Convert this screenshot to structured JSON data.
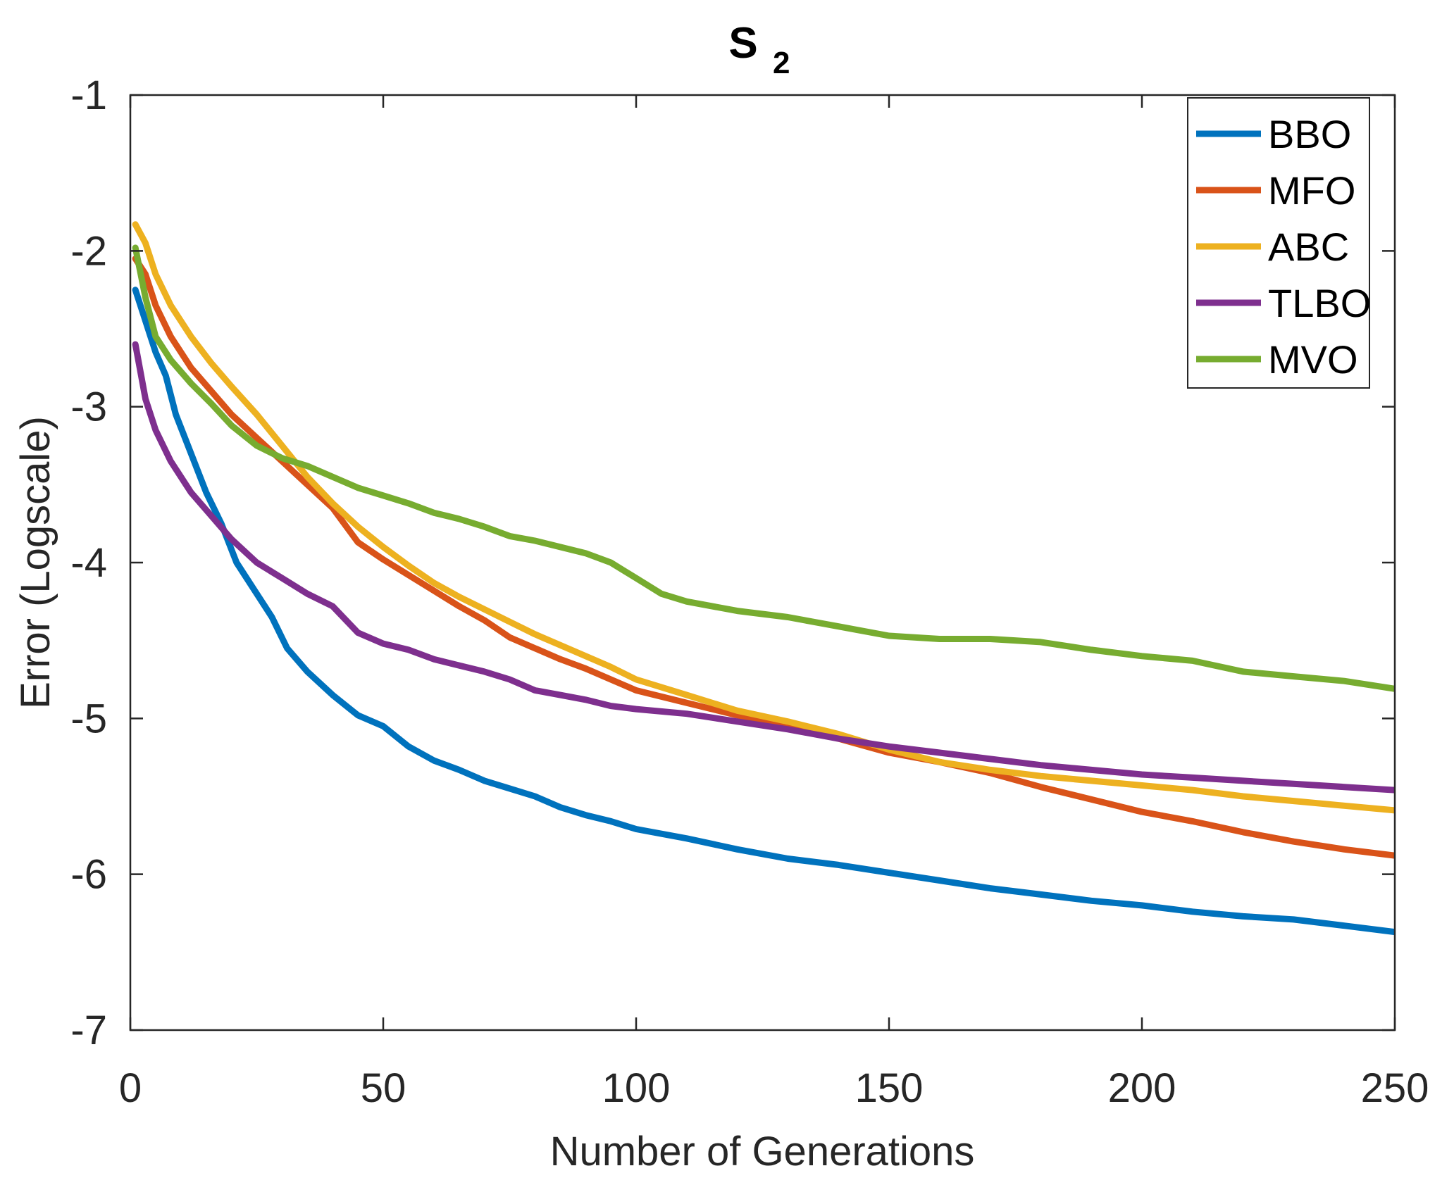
{
  "chart_data": {
    "type": "line",
    "title": "S",
    "title_subscript": "2",
    "xlabel": "Number of Generations",
    "ylabel": "Error (Logscale)",
    "xlim": [
      0,
      250
    ],
    "ylim": [
      -7,
      -1
    ],
    "xticks": [
      0,
      50,
      100,
      150,
      200,
      250
    ],
    "yticks": [
      -1,
      -2,
      -3,
      -4,
      -5,
      -6,
      -7
    ],
    "grid": false,
    "legend_position": "top-right",
    "series": [
      {
        "name": "BBO",
        "color": "#0072BD",
        "points": [
          [
            1,
            -2.25
          ],
          [
            3,
            -2.45
          ],
          [
            5,
            -2.65
          ],
          [
            7,
            -2.8
          ],
          [
            9,
            -3.05
          ],
          [
            12,
            -3.3
          ],
          [
            15,
            -3.55
          ],
          [
            18,
            -3.75
          ],
          [
            21,
            -4.0
          ],
          [
            25,
            -4.2
          ],
          [
            28,
            -4.35
          ],
          [
            31,
            -4.55
          ],
          [
            35,
            -4.7
          ],
          [
            40,
            -4.85
          ],
          [
            45,
            -4.98
          ],
          [
            50,
            -5.05
          ],
          [
            55,
            -5.18
          ],
          [
            60,
            -5.27
          ],
          [
            65,
            -5.33
          ],
          [
            70,
            -5.4
          ],
          [
            75,
            -5.45
          ],
          [
            80,
            -5.5
          ],
          [
            85,
            -5.57
          ],
          [
            90,
            -5.62
          ],
          [
            95,
            -5.66
          ],
          [
            100,
            -5.71
          ],
          [
            110,
            -5.77
          ],
          [
            120,
            -5.84
          ],
          [
            130,
            -5.9
          ],
          [
            140,
            -5.94
          ],
          [
            150,
            -5.99
          ],
          [
            160,
            -6.04
          ],
          [
            170,
            -6.09
          ],
          [
            180,
            -6.13
          ],
          [
            190,
            -6.17
          ],
          [
            200,
            -6.2
          ],
          [
            210,
            -6.24
          ],
          [
            220,
            -6.27
          ],
          [
            230,
            -6.29
          ],
          [
            240,
            -6.33
          ],
          [
            250,
            -6.37
          ]
        ]
      },
      {
        "name": "MFO",
        "color": "#D95319",
        "points": [
          [
            1,
            -2.05
          ],
          [
            3,
            -2.15
          ],
          [
            5,
            -2.35
          ],
          [
            8,
            -2.55
          ],
          [
            12,
            -2.75
          ],
          [
            16,
            -2.9
          ],
          [
            20,
            -3.05
          ],
          [
            25,
            -3.2
          ],
          [
            30,
            -3.35
          ],
          [
            35,
            -3.5
          ],
          [
            40,
            -3.65
          ],
          [
            45,
            -3.87
          ],
          [
            50,
            -3.98
          ],
          [
            55,
            -4.08
          ],
          [
            60,
            -4.18
          ],
          [
            65,
            -4.28
          ],
          [
            70,
            -4.37
          ],
          [
            75,
            -4.48
          ],
          [
            80,
            -4.55
          ],
          [
            85,
            -4.62
          ],
          [
            90,
            -4.68
          ],
          [
            95,
            -4.75
          ],
          [
            100,
            -4.82
          ],
          [
            110,
            -4.9
          ],
          [
            120,
            -4.98
          ],
          [
            130,
            -5.05
          ],
          [
            140,
            -5.13
          ],
          [
            150,
            -5.22
          ],
          [
            160,
            -5.28
          ],
          [
            170,
            -5.35
          ],
          [
            180,
            -5.44
          ],
          [
            190,
            -5.52
          ],
          [
            200,
            -5.6
          ],
          [
            210,
            -5.66
          ],
          [
            220,
            -5.73
          ],
          [
            230,
            -5.79
          ],
          [
            240,
            -5.84
          ],
          [
            250,
            -5.88
          ]
        ]
      },
      {
        "name": "ABC",
        "color": "#EDB120",
        "points": [
          [
            1,
            -1.83
          ],
          [
            3,
            -1.95
          ],
          [
            5,
            -2.15
          ],
          [
            8,
            -2.35
          ],
          [
            12,
            -2.55
          ],
          [
            16,
            -2.72
          ],
          [
            20,
            -2.87
          ],
          [
            25,
            -3.05
          ],
          [
            30,
            -3.25
          ],
          [
            35,
            -3.45
          ],
          [
            40,
            -3.62
          ],
          [
            45,
            -3.77
          ],
          [
            50,
            -3.9
          ],
          [
            55,
            -4.02
          ],
          [
            60,
            -4.13
          ],
          [
            65,
            -4.22
          ],
          [
            70,
            -4.3
          ],
          [
            75,
            -4.38
          ],
          [
            80,
            -4.46
          ],
          [
            85,
            -4.53
          ],
          [
            90,
            -4.6
          ],
          [
            95,
            -4.67
          ],
          [
            100,
            -4.75
          ],
          [
            110,
            -4.85
          ],
          [
            120,
            -4.95
          ],
          [
            130,
            -5.02
          ],
          [
            140,
            -5.1
          ],
          [
            150,
            -5.2
          ],
          [
            160,
            -5.28
          ],
          [
            170,
            -5.33
          ],
          [
            180,
            -5.37
          ],
          [
            190,
            -5.4
          ],
          [
            200,
            -5.43
          ],
          [
            210,
            -5.46
          ],
          [
            220,
            -5.5
          ],
          [
            230,
            -5.53
          ],
          [
            240,
            -5.56
          ],
          [
            250,
            -5.59
          ]
        ]
      },
      {
        "name": "TLBO",
        "color": "#7E2F8E",
        "points": [
          [
            1,
            -2.6
          ],
          [
            3,
            -2.95
          ],
          [
            5,
            -3.15
          ],
          [
            8,
            -3.35
          ],
          [
            12,
            -3.55
          ],
          [
            16,
            -3.7
          ],
          [
            20,
            -3.85
          ],
          [
            25,
            -4.0
          ],
          [
            30,
            -4.1
          ],
          [
            35,
            -4.2
          ],
          [
            40,
            -4.28
          ],
          [
            45,
            -4.45
          ],
          [
            50,
            -4.52
          ],
          [
            55,
            -4.56
          ],
          [
            60,
            -4.62
          ],
          [
            65,
            -4.66
          ],
          [
            70,
            -4.7
          ],
          [
            75,
            -4.75
          ],
          [
            80,
            -4.82
          ],
          [
            85,
            -4.85
          ],
          [
            90,
            -4.88
          ],
          [
            95,
            -4.92
          ],
          [
            100,
            -4.94
          ],
          [
            110,
            -4.97
          ],
          [
            120,
            -5.02
          ],
          [
            130,
            -5.07
          ],
          [
            140,
            -5.13
          ],
          [
            150,
            -5.18
          ],
          [
            160,
            -5.22
          ],
          [
            170,
            -5.26
          ],
          [
            180,
            -5.3
          ],
          [
            190,
            -5.33
          ],
          [
            200,
            -5.36
          ],
          [
            210,
            -5.38
          ],
          [
            220,
            -5.4
          ],
          [
            230,
            -5.42
          ],
          [
            240,
            -5.44
          ],
          [
            250,
            -5.46
          ]
        ]
      },
      {
        "name": "MVO",
        "color": "#77AC30",
        "points": [
          [
            1,
            -1.98
          ],
          [
            3,
            -2.3
          ],
          [
            5,
            -2.55
          ],
          [
            8,
            -2.7
          ],
          [
            12,
            -2.85
          ],
          [
            16,
            -2.98
          ],
          [
            20,
            -3.12
          ],
          [
            25,
            -3.25
          ],
          [
            30,
            -3.33
          ],
          [
            35,
            -3.38
          ],
          [
            40,
            -3.45
          ],
          [
            45,
            -3.52
          ],
          [
            50,
            -3.57
          ],
          [
            55,
            -3.62
          ],
          [
            60,
            -3.68
          ],
          [
            65,
            -3.72
          ],
          [
            70,
            -3.77
          ],
          [
            75,
            -3.83
          ],
          [
            80,
            -3.86
          ],
          [
            85,
            -3.9
          ],
          [
            90,
            -3.94
          ],
          [
            95,
            -4.0
          ],
          [
            100,
            -4.1
          ],
          [
            105,
            -4.2
          ],
          [
            110,
            -4.25
          ],
          [
            120,
            -4.31
          ],
          [
            130,
            -4.35
          ],
          [
            140,
            -4.41
          ],
          [
            150,
            -4.47
          ],
          [
            160,
            -4.49
          ],
          [
            170,
            -4.49
          ],
          [
            180,
            -4.51
          ],
          [
            190,
            -4.56
          ],
          [
            200,
            -4.6
          ],
          [
            210,
            -4.63
          ],
          [
            220,
            -4.7
          ],
          [
            230,
            -4.73
          ],
          [
            240,
            -4.76
          ],
          [
            250,
            -4.81
          ]
        ]
      }
    ]
  }
}
